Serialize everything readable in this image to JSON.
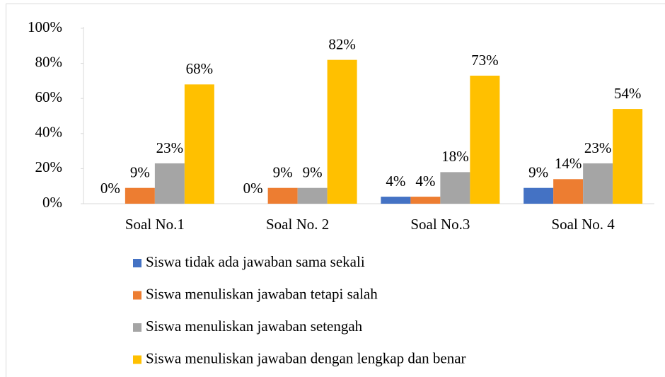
{
  "chart_data": {
    "type": "bar",
    "categories": [
      "Soal No.1",
      "Soal No. 2",
      "Soal No.3",
      "Soal No. 4"
    ],
    "series": [
      {
        "name": "Siswa tidak ada jawaban sama sekali",
        "color": "#4472c4",
        "values": [
          0,
          0,
          4,
          9
        ],
        "value_labels": [
          "0%",
          "0%",
          "4%",
          "9%"
        ]
      },
      {
        "name": "Siswa menuliskan jawaban tetapi salah",
        "color": "#ed7d31",
        "values": [
          9,
          9,
          4,
          14
        ],
        "value_labels": [
          "9%",
          "9%",
          "4%",
          "14%"
        ]
      },
      {
        "name": "Siswa menuliskan jawaban setengah",
        "color": "#a5a5a5",
        "values": [
          23,
          9,
          18,
          23
        ],
        "value_labels": [
          "23%",
          "9%",
          "18%",
          "23%"
        ]
      },
      {
        "name": "Siswa menuliskan jawaban dengan lengkap dan benar",
        "color": "#ffc000",
        "values": [
          68,
          82,
          73,
          54
        ],
        "value_labels": [
          "68%",
          "82%",
          "73%",
          "54%"
        ]
      }
    ],
    "ylim": [
      0,
      100
    ],
    "yticks": [
      {
        "value": 0,
        "label": "0%"
      },
      {
        "value": 20,
        "label": "20%"
      },
      {
        "value": 40,
        "label": "40%"
      },
      {
        "value": 60,
        "label": "60%"
      },
      {
        "value": 80,
        "label": "80%"
      },
      {
        "value": 100,
        "label": "100%"
      }
    ],
    "grid": false,
    "legend": "bottom"
  }
}
